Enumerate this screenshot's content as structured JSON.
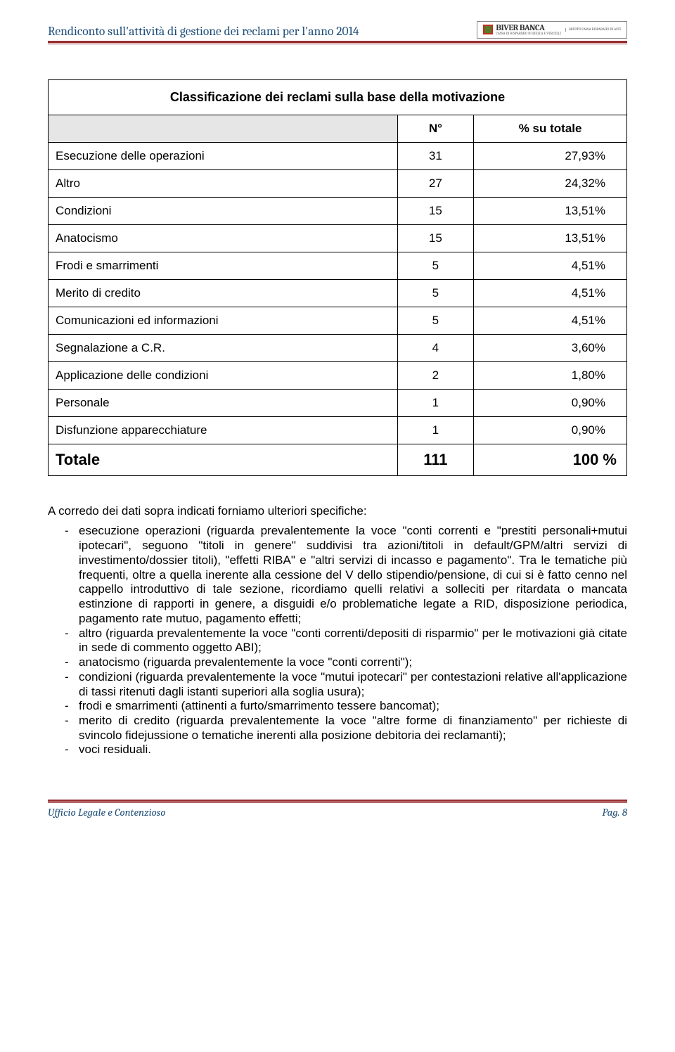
{
  "header": {
    "title": "Rendiconto sull'attività di gestione dei reclami per l'anno 2014",
    "logo_name": "BIVER BANCA",
    "logo_sub1": "CASSA DI RISPARMIO DI BIELLA E VERCELLI",
    "logo_sub2": "GRUPPO CASSA RISPARMIO DI ASTI"
  },
  "table": {
    "title": "Classificazione dei reclami sulla base della motivazione",
    "col_n": "N°",
    "col_pct": "% su totale",
    "rows": [
      {
        "label": "Esecuzione delle operazioni",
        "n": "31",
        "pct": "27,93%"
      },
      {
        "label": "Altro",
        "n": "27",
        "pct": "24,32%"
      },
      {
        "label": "Condizioni",
        "n": "15",
        "pct": "13,51%"
      },
      {
        "label": "Anatocismo",
        "n": "15",
        "pct": "13,51%"
      },
      {
        "label": "Frodi e smarrimenti",
        "n": "5",
        "pct": "4,51%"
      },
      {
        "label": "Merito di credito",
        "n": "5",
        "pct": "4,51%"
      },
      {
        "label": "Comunicazioni ed informazioni",
        "n": "5",
        "pct": "4,51%"
      },
      {
        "label": "Segnalazione a C.R.",
        "n": "4",
        "pct": "3,60%"
      },
      {
        "label": "Applicazione delle condizioni",
        "n": "2",
        "pct": "1,80%"
      },
      {
        "label": "Personale",
        "n": "1",
        "pct": "0,90%"
      },
      {
        "label": "Disfunzione apparecchiature",
        "n": "1",
        "pct": "0,90%"
      }
    ],
    "total_label": "Totale",
    "total_n": "111",
    "total_pct": "100 %"
  },
  "body": {
    "intro": "A corredo dei dati sopra indicati forniamo ulteriori specifiche:",
    "bullets": [
      "esecuzione operazioni (riguarda prevalentemente la voce \"conti correnti e \"prestiti personali+mutui ipotecari\", seguono \"titoli in genere\" suddivisi tra azioni/titoli in default/GPM/altri servizi di investimento/dossier titoli), \"effetti RIBA\" e \"altri servizi di incasso e pagamento\". Tra le tematiche più frequenti, oltre a quella inerente alla cessione del V dello stipendio/pensione, di cui si è fatto cenno nel cappello introduttivo di tale sezione, ricordiamo quelli relativi a solleciti per ritardata o mancata estinzione di rapporti in genere, a disguidi e/o problematiche legate a RID, disposizione periodica, pagamento rate mutuo, pagamento effetti;",
      "altro (riguarda prevalentemente la voce \"conti correnti/depositi di risparmio\" per le motivazioni già citate in sede di commento oggetto ABI);",
      "anatocismo (riguarda prevalentemente la voce \"conti correnti\");",
      "condizioni (riguarda prevalentemente la voce \"mutui ipotecari\" per contestazioni relative all'applicazione di tassi ritenuti dagli istanti superiori alla soglia usura);",
      "frodi e smarrimenti (attinenti a furto/smarrimento tessere bancomat);",
      "merito di credito (riguarda prevalentemente la voce \"altre forme di finanziamento\" per richieste di svincolo fidejussione o tematiche inerenti alla posizione debitoria dei reclamanti);",
      "voci residuali."
    ]
  },
  "footer": {
    "left": "Ufficio Legale e Contenzioso",
    "right": "Pag. 8"
  }
}
